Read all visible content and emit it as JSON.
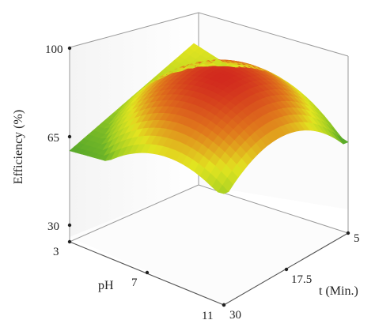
{
  "chart_data": {
    "type": "surface3d",
    "zlabel": "Efficiency (%)",
    "xlabel": "pH",
    "ylabel": "t (Min.)",
    "x_ticks": [
      "3",
      "7",
      "11"
    ],
    "y_ticks": [
      "5",
      "17.5",
      "30"
    ],
    "z_ticks": [
      "30",
      "65",
      "100"
    ],
    "xlim": [
      3,
      11
    ],
    "ylim": [
      5,
      30
    ],
    "zlim": [
      30,
      100
    ],
    "corner_values": [
      {
        "pH": 3,
        "t": 30,
        "efficiency": 66
      },
      {
        "pH": 11,
        "t": 30,
        "efficiency": 74
      },
      {
        "pH": 3,
        "t": 5,
        "efficiency": 80
      },
      {
        "pH": 11,
        "t": 5,
        "efficiency": 66
      }
    ],
    "peak": {
      "pH": 7.8,
      "t": 17.5,
      "efficiency": 95
    },
    "colormap": [
      "#3c9a2c",
      "#9ccc24",
      "#e2e420",
      "#e07a1c",
      "#d22a1e"
    ],
    "grid": false
  }
}
